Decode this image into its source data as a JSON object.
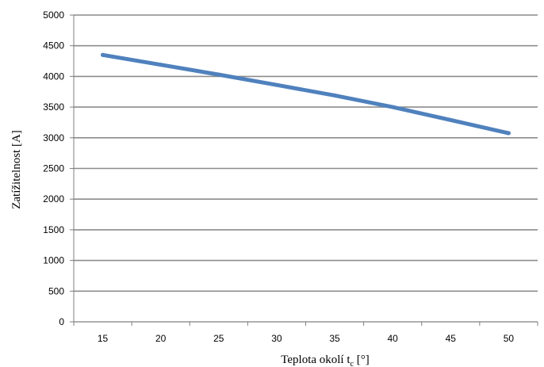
{
  "chart_data": {
    "type": "line",
    "x": [
      15,
      20,
      25,
      30,
      35,
      40,
      45,
      50
    ],
    "series": [
      {
        "values": [
          4350,
          4190,
          4030,
          3860,
          3690,
          3500,
          3290,
          3075
        ]
      }
    ],
    "xlim": [
      12.5,
      52.5
    ],
    "ylim": [
      0,
      5000
    ],
    "x_ticks": [
      "15",
      "20",
      "25",
      "30",
      "35",
      "40",
      "45",
      "50"
    ],
    "y_ticks": [
      "0",
      "500",
      "1000",
      "1500",
      "2000",
      "2500",
      "3000",
      "3500",
      "4000",
      "4500",
      "5000"
    ],
    "xlabel": "Teplota okolí t",
    "xlabel_sub": "c",
    "xlabel_suffix": " [°]",
    "ylabel": "Zatížitelnost [A]",
    "grid": "horizontal",
    "legend": "none",
    "colors": {
      "line": "#4f81bd",
      "grid": "#8c8c8c",
      "axis": "#7f7f7f"
    }
  }
}
